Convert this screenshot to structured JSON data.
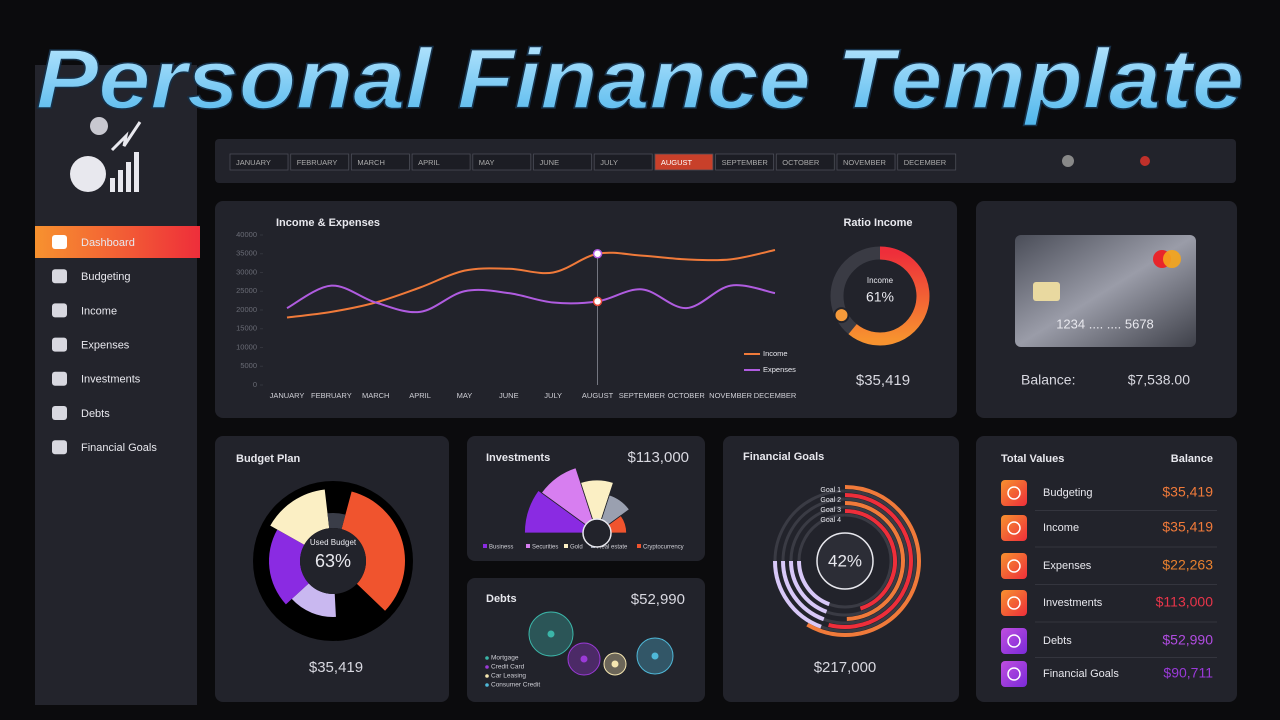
{
  "banner": {
    "title": "Personal Finance Template"
  },
  "sidebar": {
    "items": [
      "Dashboard",
      "Budgeting",
      "Income",
      "Expenses",
      "Investments",
      "Debts",
      "Financial Goals"
    ],
    "active": 0
  },
  "months": {
    "items": [
      "JANUARY",
      "FEBRUARY",
      "MARCH",
      "APRIL",
      "MAY",
      "JUNE",
      "JULY",
      "AUGUST",
      "SEPTEMBER",
      "OCTOBER",
      "NOVEMBER",
      "DECEMBER"
    ],
    "selected": 7
  },
  "income_expenses": {
    "type": "line",
    "title": "Income & Expenses",
    "categories": [
      "JANUARY",
      "FEBRUARY",
      "MARCH",
      "APRIL",
      "MAY",
      "JUNE",
      "JULY",
      "AUGUST",
      "SEPTEMBER",
      "OCTOBER",
      "NOVEMBER",
      "DECEMBER"
    ],
    "ylim": [
      0,
      40000
    ],
    "yticks": [
      0,
      5000,
      10000,
      15000,
      20000,
      25000,
      30000,
      35000,
      40000
    ],
    "series": [
      {
        "name": "Income",
        "color": "#f07a3a",
        "values": [
          18000,
          19500,
          22000,
          26000,
          30500,
          31000,
          30000,
          35000,
          34500,
          33500,
          33500,
          36000
        ]
      },
      {
        "name": "Expenses",
        "color": "#b05ce0",
        "values": [
          20500,
          26500,
          22000,
          19500,
          25000,
          24500,
          22000,
          22300,
          25500,
          20500,
          26500,
          24500
        ]
      }
    ]
  },
  "ratio_income": {
    "type": "donut",
    "title": "Ratio Income",
    "label": "Income",
    "value": 61,
    "value_label": "61%",
    "amount": "$35,419"
  },
  "card": {
    "number": "1234 .... .... 5678",
    "balance_label": "Balance:",
    "balance": "$7,538.00"
  },
  "budget_plan": {
    "type": "donut",
    "title": "Budget Plan",
    "label": "Used Budget",
    "value": 63,
    "value_label": "63%",
    "amount": "$35,419",
    "segments": [
      33,
      12,
      14,
      20,
      15,
      6
    ],
    "colors": [
      "#f0542e",
      "#000000",
      "#c9b8f0",
      "#8a2be2",
      "#fbefc4",
      "#3a3d48"
    ]
  },
  "investments": {
    "type": "polar",
    "title": "Investments",
    "amount": "$113,000",
    "categories": [
      "Business",
      "Securities",
      "Gold",
      "Real estate",
      "Cryptocurrency"
    ],
    "values": [
      45,
      42,
      30,
      20,
      12
    ],
    "colors": [
      "#8a2be2",
      "#d77ef0",
      "#fbefc4",
      "#9aa0b0",
      "#f0542e"
    ]
  },
  "debts": {
    "type": "bubble",
    "title": "Debts",
    "amount": "$52,990",
    "categories": [
      "Mortgage",
      "Credit Card",
      "Car Leasing",
      "Consumer Credit"
    ],
    "values": [
      22,
      16,
      11,
      18
    ],
    "colors": [
      "#3bb5a8",
      "#9b3ad8",
      "#f5e6b0",
      "#4fb8d8"
    ]
  },
  "financial_goals": {
    "type": "radial",
    "title": "Financial Goals",
    "categories": [
      "Goal 1",
      "Goal 2",
      "Goal 3",
      "Goal 4"
    ],
    "values": [
      78,
      72,
      66,
      60
    ],
    "value": 42,
    "value_label": "42%",
    "amount": "$217,000"
  },
  "total_values": {
    "title": "Total Values",
    "balance_header": "Balance",
    "rows": [
      {
        "name": "Budgeting",
        "value": "$35,419",
        "color": "#f07a3a"
      },
      {
        "name": "Income",
        "value": "$35,419",
        "color": "#f07a3a"
      },
      {
        "name": "Expenses",
        "value": "$22,263",
        "color": "#e8802e"
      },
      {
        "name": "Investments",
        "value": "$113,000",
        "color": "#e8354a"
      },
      {
        "name": "Debts",
        "value": "$52,990",
        "color": "#b04ce0"
      },
      {
        "name": "Financial Goals",
        "value": "$90,711",
        "color": "#9a3ad8"
      }
    ]
  }
}
